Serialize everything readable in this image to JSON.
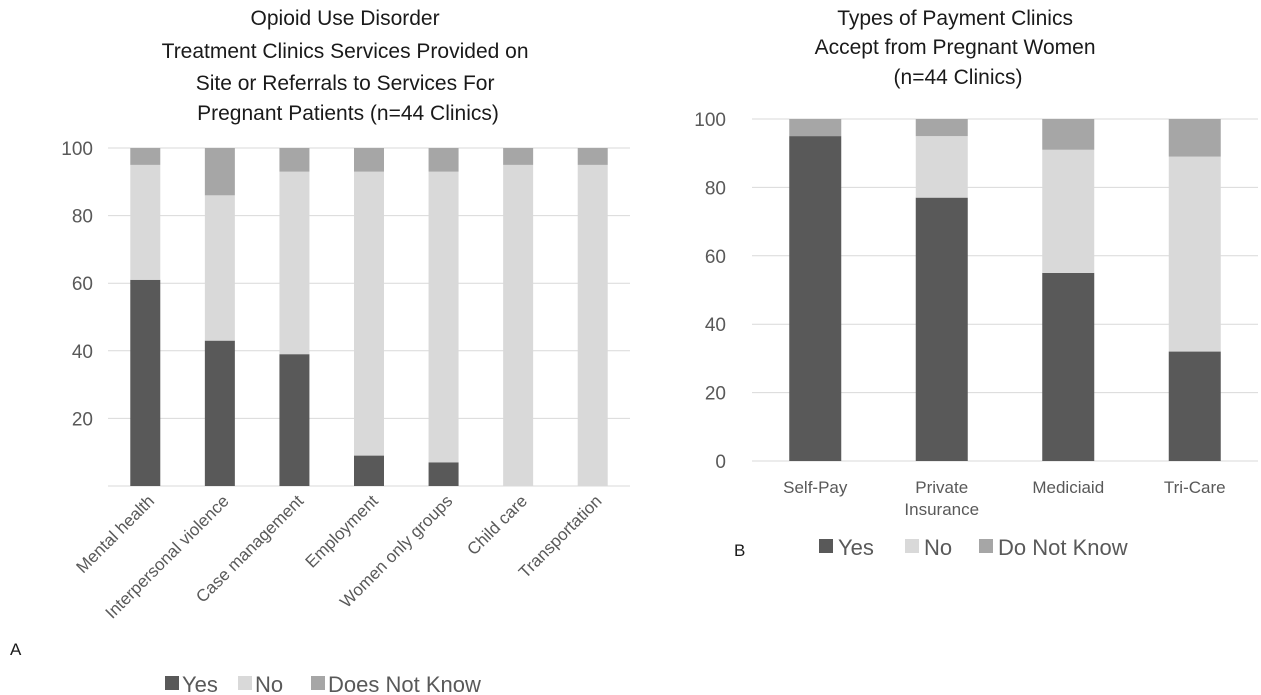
{
  "colors": {
    "yes": "#595959",
    "no": "#d9d9d9",
    "unknown": "#a6a6a6",
    "grid": "#d9d9d9"
  },
  "chart_data": [
    {
      "type": "bar",
      "stacked": true,
      "panel_letter": "A",
      "title_lines": [
        "Opioid Use Disorder",
        "Treatment Clinics Services Provided on",
        "Site or Referrals to Services For",
        "Pregnant Patients (n=44 Clinics)"
      ],
      "categories": [
        "Mental health",
        "Interpersonal violence",
        "Case management",
        "Employment",
        "Women only groups",
        "Child care",
        "Transportation"
      ],
      "series": [
        {
          "name": "Yes",
          "values": [
            61,
            43,
            39,
            9,
            7,
            0,
            0
          ]
        },
        {
          "name": "No",
          "values": [
            34,
            43,
            54,
            84,
            86,
            95,
            95
          ]
        },
        {
          "name": "Does Not Know",
          "values": [
            5,
            14,
            7,
            7,
            7,
            5,
            5
          ]
        }
      ],
      "ylim": [
        0,
        100
      ],
      "yticks": [
        "20",
        "40",
        "60",
        "80",
        "100"
      ],
      "grid": true,
      "legend_position": "bottom"
    },
    {
      "type": "bar",
      "stacked": true,
      "panel_letter": "B",
      "title_lines": [
        "Types of Payment Clinics",
        "Accept from Pregnant Women",
        "(n=44 Clinics)"
      ],
      "categories": [
        "Self-Pay",
        "Private Insurance",
        "Mediciaid",
        "Tri-Care"
      ],
      "category_lines": [
        [
          "Self-Pay"
        ],
        [
          "Private",
          "Insurance"
        ],
        [
          "Mediciaid"
        ],
        [
          "Tri-Care"
        ]
      ],
      "series": [
        {
          "name": "Yes",
          "values": [
            95,
            77,
            55,
            32
          ]
        },
        {
          "name": "No",
          "values": [
            0,
            18,
            36,
            57
          ]
        },
        {
          "name": "Do Not Know",
          "values": [
            5,
            5,
            9,
            11
          ]
        }
      ],
      "ylim": [
        0,
        100
      ],
      "yticks": [
        "0",
        "20",
        "40",
        "60",
        "80",
        "100"
      ],
      "grid": true,
      "legend_position": "bottom"
    }
  ]
}
